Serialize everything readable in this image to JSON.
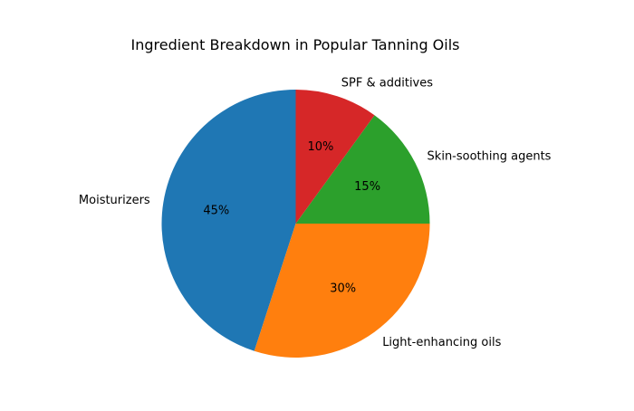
{
  "chart_data": {
    "type": "pie",
    "title": "Ingredient Breakdown in Popular Tanning Oils",
    "start_angle_deg": 90,
    "direction": "counterclockwise",
    "slices": [
      {
        "label": "Moisturizers",
        "value": 45,
        "pct_label": "45%",
        "color": "#1f77b4"
      },
      {
        "label": "Light-enhancing oils",
        "value": 30,
        "pct_label": "30%",
        "color": "#ff7f0e"
      },
      {
        "label": "Skin-soothing agents",
        "value": 15,
        "pct_label": "15%",
        "color": "#2ca02c"
      },
      {
        "label": "SPF & additives",
        "value": 10,
        "pct_label": "10%",
        "color": "#d62728"
      }
    ]
  }
}
